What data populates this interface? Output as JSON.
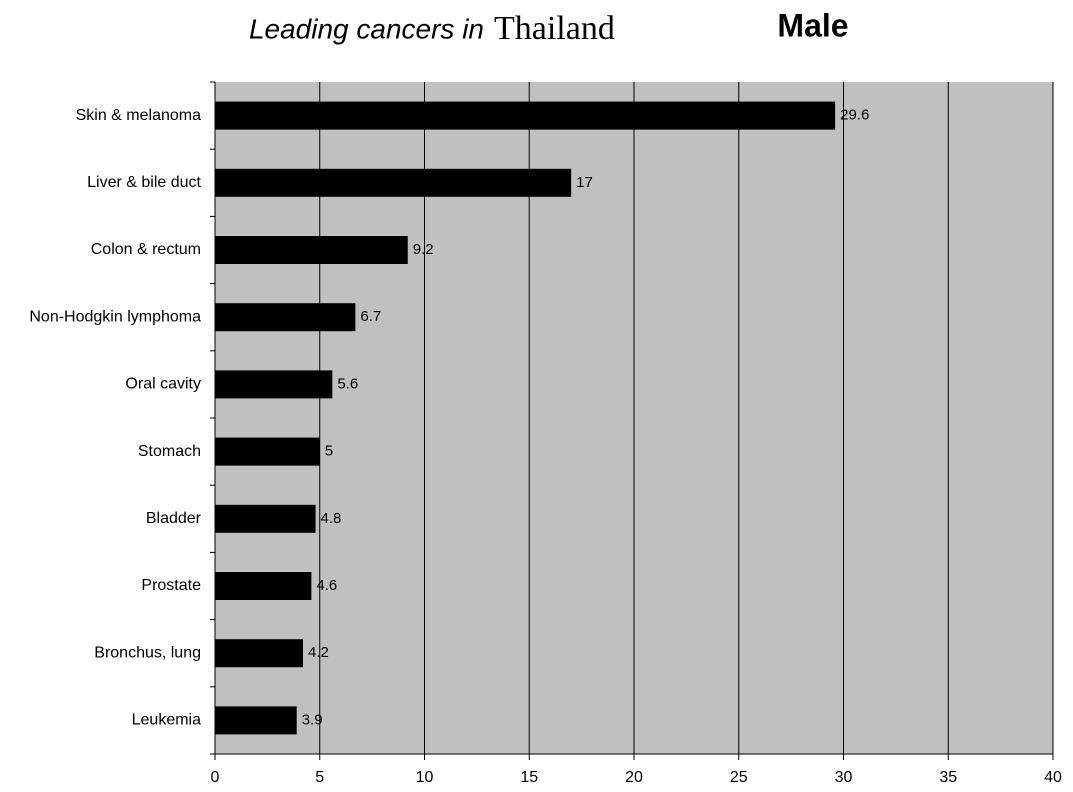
{
  "chart_data": {
    "type": "bar",
    "orientation": "horizontal",
    "title": [
      "Leading cancers in",
      "Thailand"
    ],
    "subtitle": "Male",
    "categories": [
      "Skin & melanoma",
      "Liver & bile duct",
      "Colon & rectum",
      "Non-Hodgkin lymphoma",
      "Oral cavity",
      "Stomach",
      "Bladder",
      "Prostate",
      "Bronchus, lung",
      "Leukemia"
    ],
    "values": [
      29.6,
      17,
      9.2,
      6.7,
      5.6,
      5,
      4.8,
      4.6,
      4.2,
      3.9
    ],
    "color": "#000000",
    "background": "#c0c0c0",
    "xlim": [
      0,
      40
    ],
    "xticks": [
      0,
      5,
      10,
      15,
      20,
      25,
      30,
      35,
      40
    ],
    "grid": true
  }
}
